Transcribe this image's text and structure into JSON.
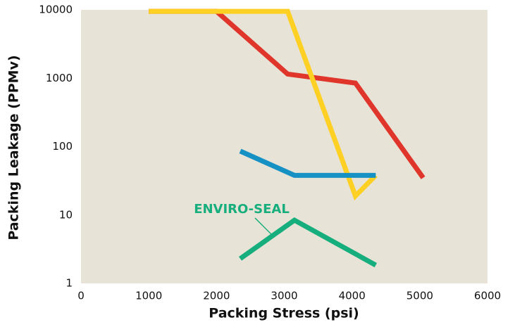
{
  "chart_data": {
    "type": "line",
    "xlabel": "Packing Stress (psi)",
    "ylabel": "Packing Leakage (PPMv)",
    "xlim": [
      0,
      6000
    ],
    "xticks": [
      0,
      1000,
      2000,
      3000,
      4000,
      5000,
      6000
    ],
    "ylim": [
      1,
      10000
    ],
    "yticks": [
      1,
      10,
      100,
      1000,
      10000
    ],
    "yscale": "log",
    "grid": false,
    "background": "#e7e3d6",
    "series": [
      {
        "color": "#e0352b",
        "x": [
          1000,
          2000,
          3050,
          4050,
          5050
        ],
        "values": [
          9500,
          9500,
          1150,
          850,
          35
        ]
      },
      {
        "color": "#fdd023",
        "x": [
          1000,
          3050,
          4050,
          4350
        ],
        "values": [
          9500,
          9500,
          19,
          38
        ]
      },
      {
        "color": "#1691c4",
        "x": [
          2350,
          3150,
          4350
        ],
        "values": [
          86,
          38,
          38
        ]
      },
      {
        "color": "#17ae7e",
        "x": [
          2350,
          3150,
          4350
        ],
        "values": [
          2.3,
          8.4,
          1.85
        ]
      }
    ],
    "annotations": [
      {
        "text": "ENVIRO-SEAL",
        "color": "#17ae7e"
      }
    ]
  }
}
